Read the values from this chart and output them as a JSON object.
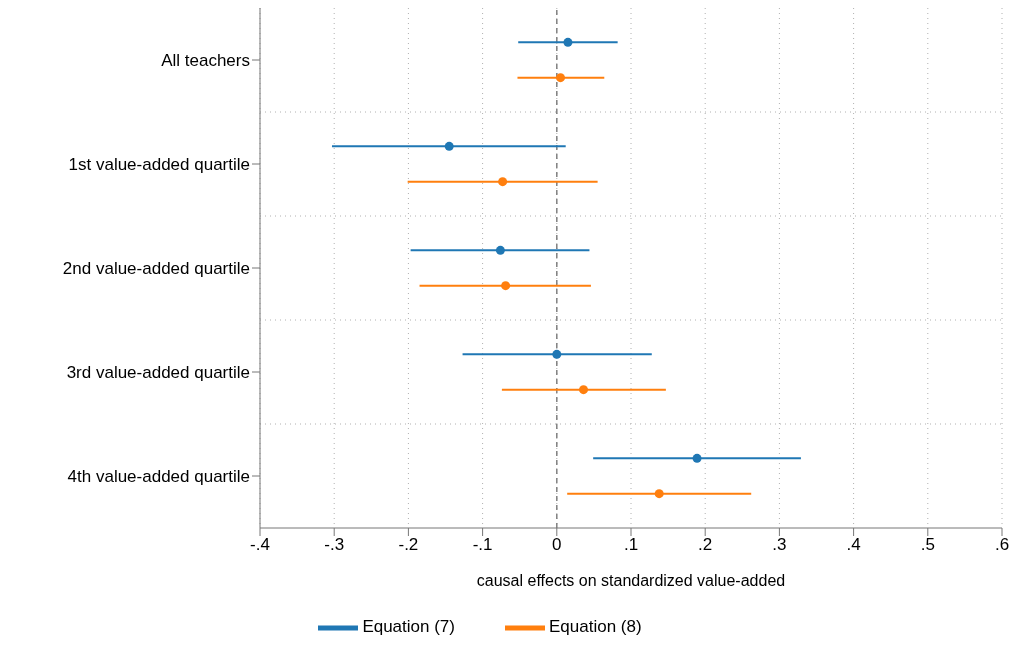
{
  "chart_data": {
    "type": "scatter",
    "orientation": "horizontal",
    "xlabel": "causal effects on standardized value-added",
    "categories": [
      "All teachers",
      "1st value-added quartile",
      "2nd value-added quartile",
      "3rd value-added quartile",
      "4th value-added quartile"
    ],
    "series": [
      {
        "name": "Equation (7)",
        "color": "#1f77b4",
        "values": [
          0.015,
          -0.145,
          -0.076,
          0.0,
          0.189
        ],
        "errors": [
          [
            -0.052,
            0.082
          ],
          [
            -0.303,
            0.012
          ],
          [
            -0.197,
            0.044
          ],
          [
            -0.127,
            0.128
          ],
          [
            0.049,
            0.329
          ]
        ]
      },
      {
        "name": "Equation (8)",
        "color": "#ff7f0e",
        "values": [
          0.005,
          -0.073,
          -0.069,
          0.036,
          0.138
        ],
        "errors": [
          [
            -0.053,
            0.064
          ],
          [
            -0.201,
            0.055
          ],
          [
            -0.185,
            0.046
          ],
          [
            -0.074,
            0.147
          ],
          [
            0.014,
            0.262
          ]
        ]
      }
    ],
    "xlim": [
      -0.4,
      0.6
    ],
    "xticks": [
      {
        "value": -0.4,
        "label": "-.4"
      },
      {
        "value": -0.3,
        "label": "-.3"
      },
      {
        "value": -0.2,
        "label": "-.2"
      },
      {
        "value": -0.1,
        "label": "-.1"
      },
      0,
      {
        "value": 0.1,
        "label": ".1"
      },
      {
        "value": 0.2,
        "label": ".2"
      },
      {
        "value": 0.3,
        "label": ".3"
      },
      {
        "value": 0.4,
        "label": ".4"
      },
      {
        "value": 0.5,
        "label": ".5"
      },
      {
        "value": 0.6,
        "label": ".6"
      }
    ],
    "ref_lines": [
      {
        "axis": "x",
        "value": 0,
        "color": "#808080",
        "line_style": "dashed"
      }
    ],
    "grid": true,
    "legend": "bottom",
    "marker": "circle"
  }
}
